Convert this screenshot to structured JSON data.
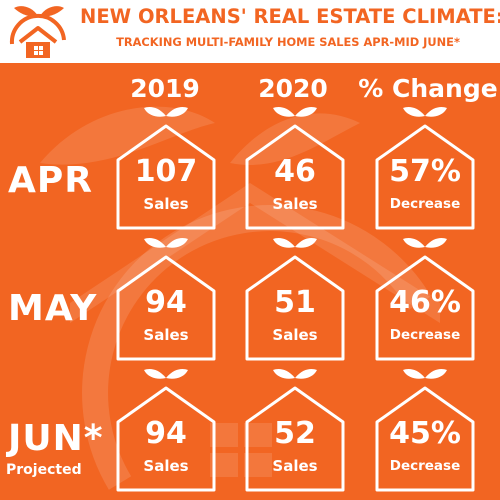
{
  "header": {
    "title": "NEW ORLEANS' REAL ESTATE CLIMATE:",
    "subtitle": "TRACKING MULTI-FAMILY HOME SALES APR-MID JUNE*",
    "logo_icon": "house-with-leaves-logo-icon"
  },
  "columns": [
    "2019",
    "2020",
    "% Change"
  ],
  "rows": [
    {
      "label": "APR",
      "note": "",
      "cells": [
        {
          "value": "107",
          "caption": "Sales"
        },
        {
          "value": "46",
          "caption": "Sales"
        },
        {
          "value": "57%",
          "caption": "Decrease"
        }
      ]
    },
    {
      "label": "MAY",
      "note": "",
      "cells": [
        {
          "value": "94",
          "caption": "Sales"
        },
        {
          "value": "51",
          "caption": "Sales"
        },
        {
          "value": "46%",
          "caption": "Decrease"
        }
      ]
    },
    {
      "label": "JUN*",
      "note": "Projected",
      "cells": [
        {
          "value": "94",
          "caption": "Sales"
        },
        {
          "value": "52",
          "caption": "Sales"
        },
        {
          "value": "45%",
          "caption": "Decrease"
        }
      ]
    }
  ],
  "colors": {
    "brand_orange": "#f26522",
    "header_background": "#ffffff",
    "text_on_orange": "#ffffff"
  },
  "icons": {
    "card": "house-outline-with-leaves-icon",
    "background": "house-watermark-icon"
  }
}
